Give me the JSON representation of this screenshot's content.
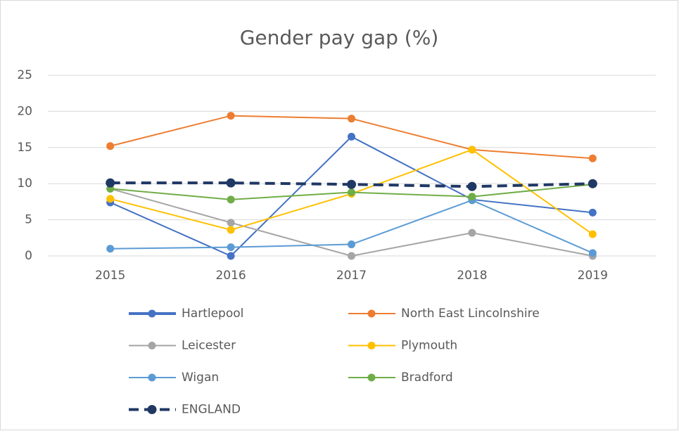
{
  "chart_data": {
    "type": "line",
    "title": "Gender pay gap (%)",
    "categories": [
      "2015",
      "2016",
      "2017",
      "2018",
      "2019"
    ],
    "ylim": [
      0,
      25
    ],
    "yticks": [
      0,
      5,
      10,
      15,
      20,
      25
    ],
    "grid": true,
    "series": [
      {
        "name": "Hartlepool",
        "color": "#4472c4",
        "values": [
          7.4,
          0,
          16.5,
          7.8,
          6.0
        ]
      },
      {
        "name": "North East Lincolnshire",
        "color": "#ed7d31",
        "values": [
          15.2,
          19.4,
          19.0,
          14.7,
          13.5
        ]
      },
      {
        "name": "Leicester",
        "color": "#a5a5a5",
        "values": [
          9.3,
          4.6,
          0,
          3.2,
          0
        ]
      },
      {
        "name": "Plymouth",
        "color": "#ffc000",
        "values": [
          7.9,
          3.6,
          8.6,
          14.7,
          3.0
        ]
      },
      {
        "name": "Wigan",
        "color": "#5b9bd5",
        "values": [
          1.0,
          1.2,
          1.6,
          7.7,
          0.4
        ]
      },
      {
        "name": "Bradford",
        "color": "#70ad47",
        "values": [
          9.3,
          7.8,
          8.8,
          8.2,
          9.9
        ]
      },
      {
        "name": "ENGLAND",
        "color": "#203864",
        "dashed": true,
        "values": [
          10.1,
          10.1,
          9.9,
          9.6,
          10.0
        ]
      }
    ]
  }
}
